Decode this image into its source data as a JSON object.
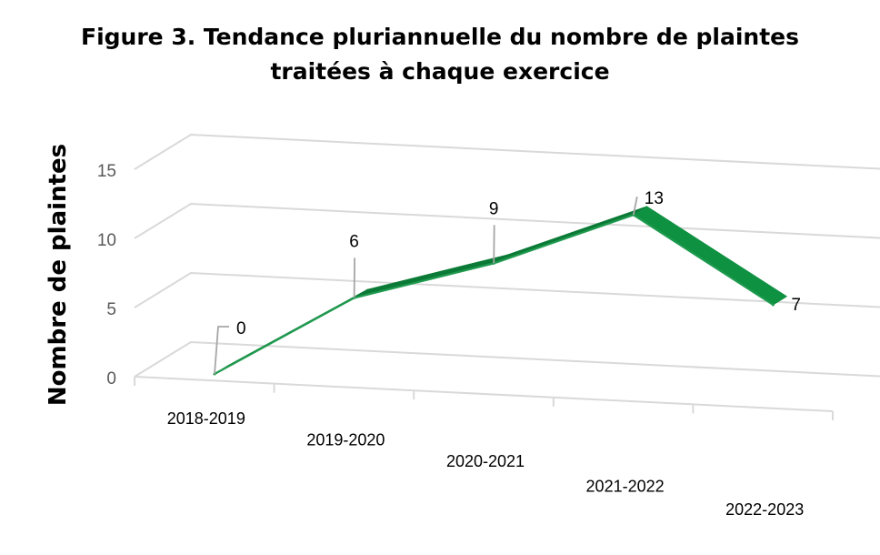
{
  "chart_data": {
    "type": "line",
    "style": "3d-ribbon",
    "title_lines": [
      "Figure 3. Tendance pluriannuelle du nombre de plaintes",
      "traitées à chaque exercice"
    ],
    "xlabel": "",
    "ylabel": "Nombre de plaintes",
    "categories": [
      "2018-2019",
      "2019-2020",
      "2020-2021",
      "2021-2022",
      "2022-2023"
    ],
    "values": [
      0,
      6,
      9,
      13,
      7
    ],
    "data_labels": [
      "0",
      "6",
      "9",
      "13",
      "7"
    ],
    "y_ticks": [
      0,
      5,
      10,
      15
    ],
    "y_tick_labels": [
      "0",
      "5",
      "10",
      "15"
    ],
    "ylim": [
      0,
      15
    ],
    "grid": true,
    "legend": "none",
    "colors": {
      "ribbon_front": "#1f9a4f",
      "ribbon_top": "#0b7a36",
      "ribbon_depth": "#0f9142",
      "gridline": "#d9d9d9",
      "leader": "#a6a6a6"
    }
  }
}
